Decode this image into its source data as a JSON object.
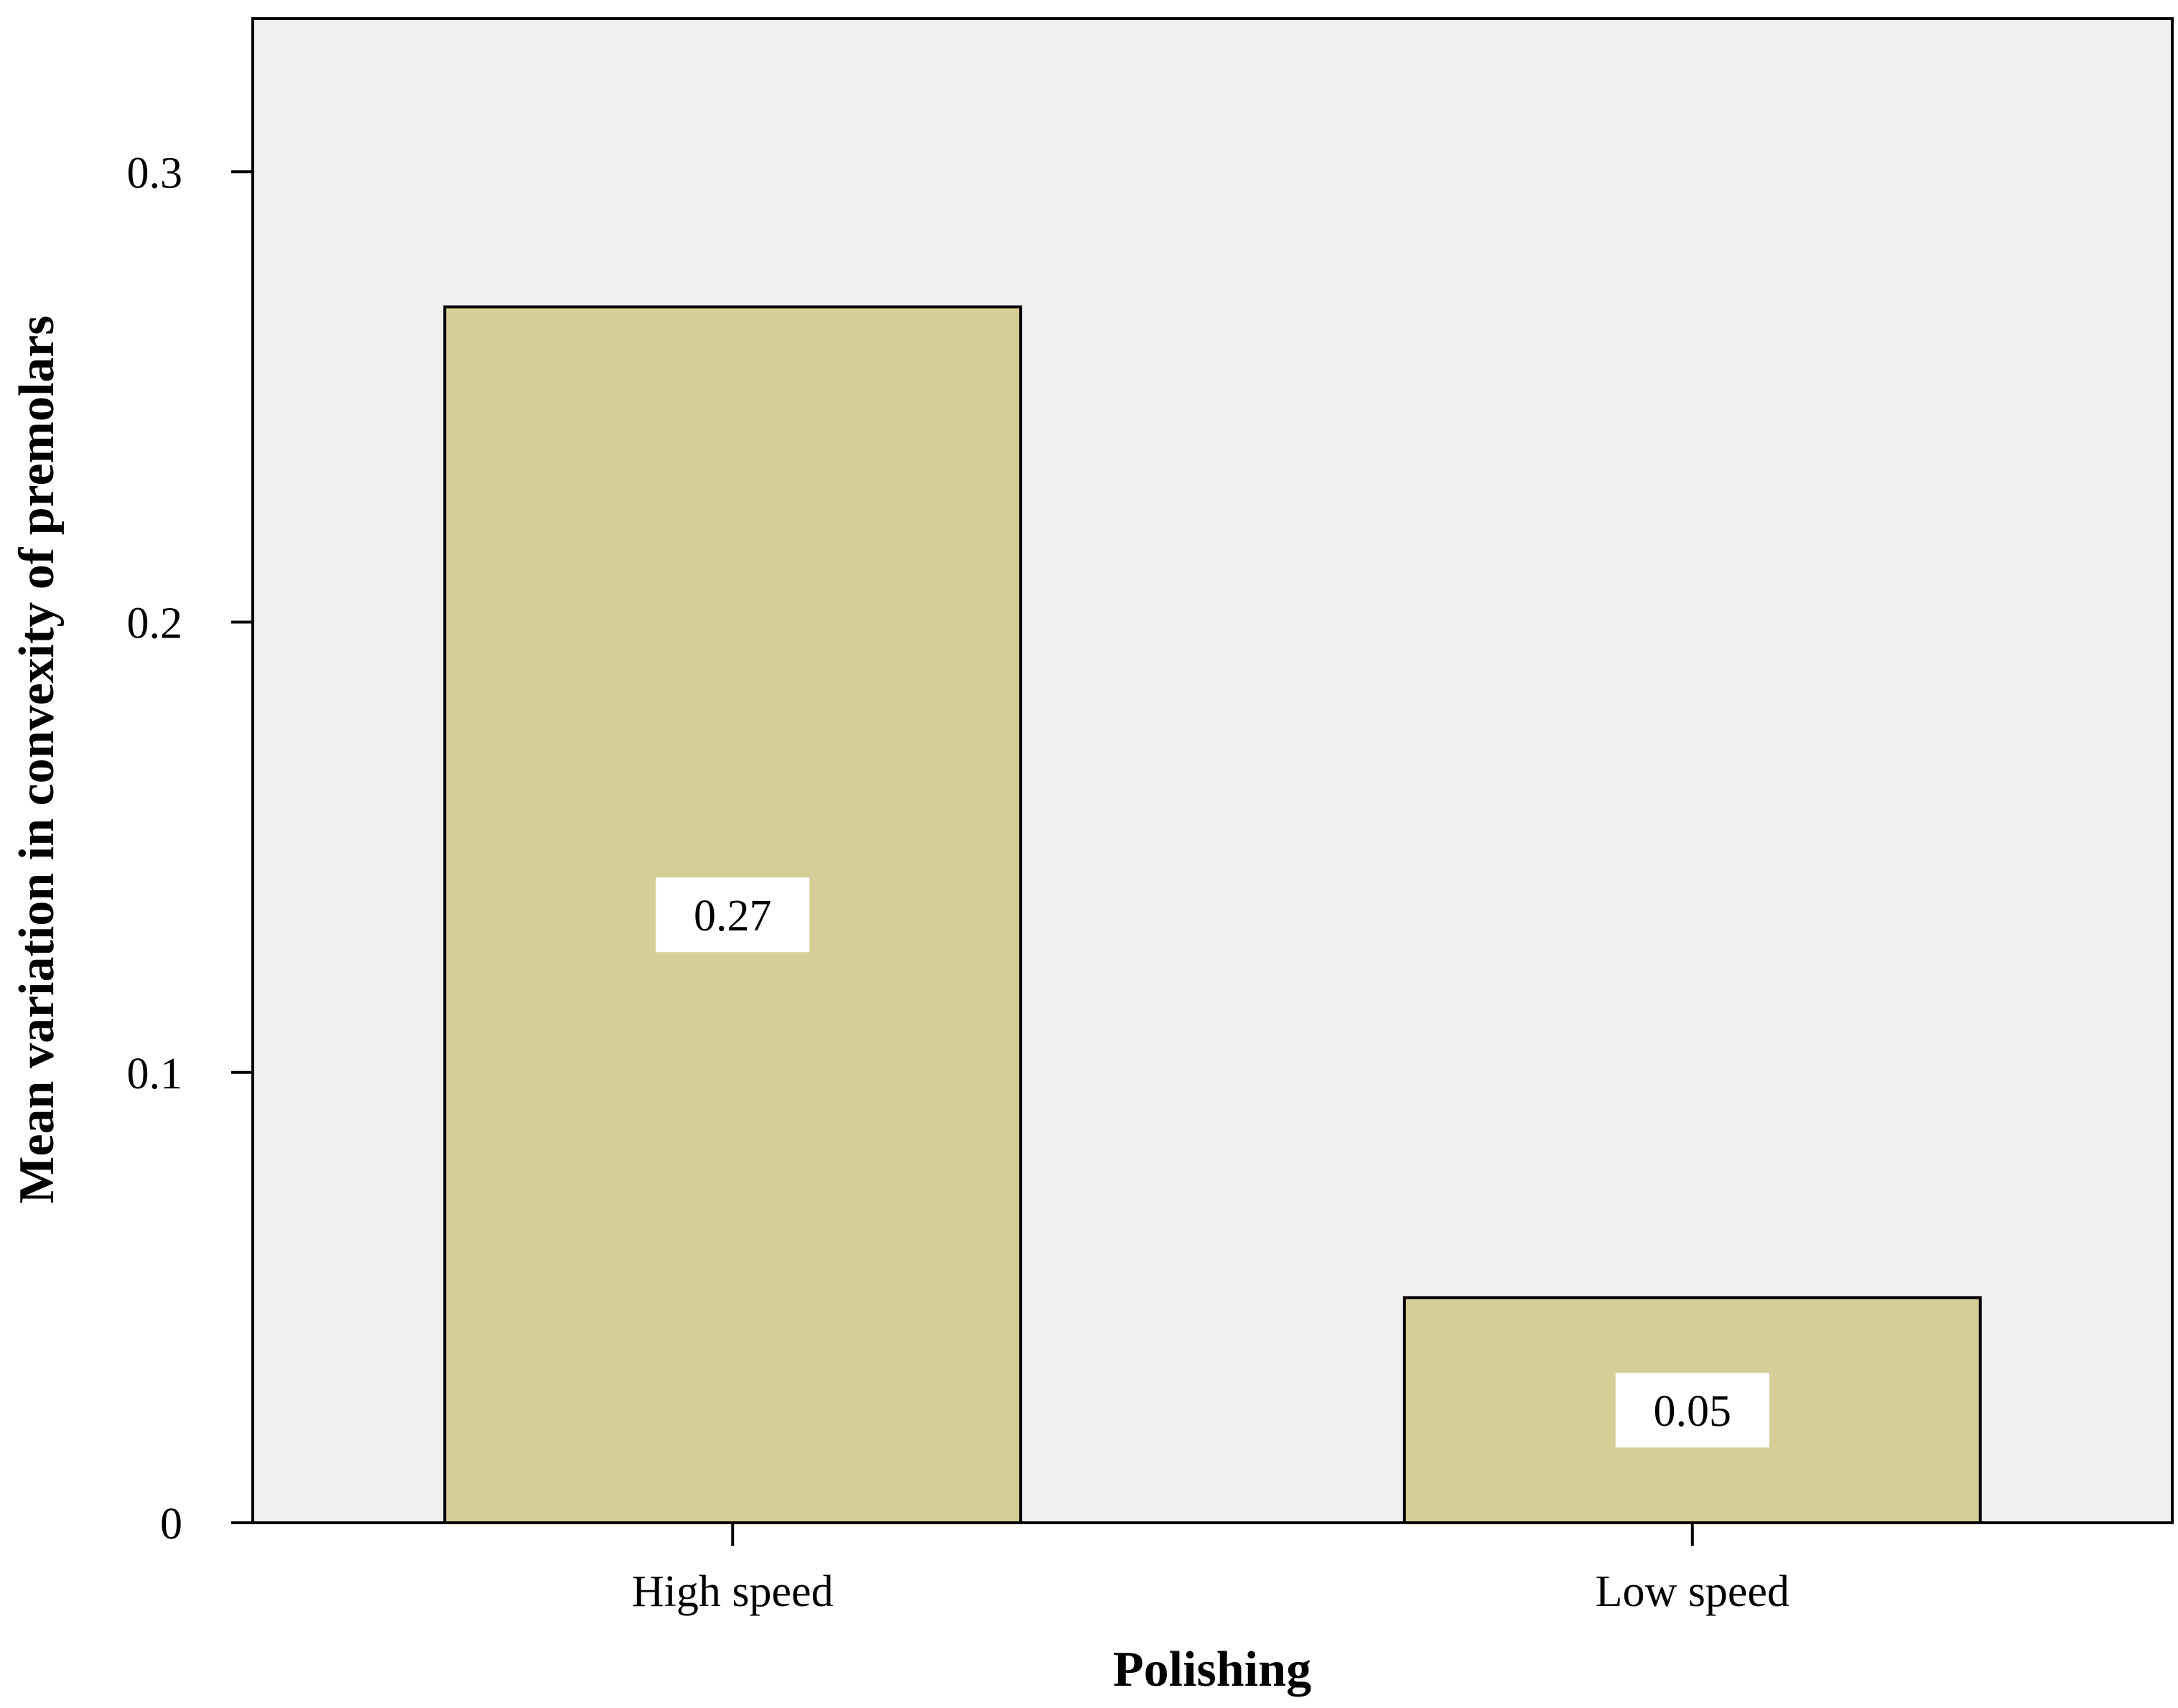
{
  "chart_data": {
    "type": "bar",
    "categories": [
      "High speed",
      "Low speed"
    ],
    "values": [
      0.27,
      0.05
    ],
    "data_labels": [
      "0.27",
      "0.05"
    ],
    "title": "",
    "xlabel": "Polishing",
    "ylabel": "Mean variation in convexity of premolars",
    "ylim": [
      0,
      0.334
    ],
    "yticks": [
      0,
      0.1,
      0.2,
      0.3
    ],
    "ytick_labels": [
      "0",
      "0.1",
      "0.2",
      "0.3"
    ],
    "grid": false,
    "legend": "none",
    "colors": {
      "bar_fill": "#d6ce96",
      "bar_stroke": "#000000",
      "plot_background": "#f0f0f0",
      "label_box": "#ffffff"
    }
  }
}
